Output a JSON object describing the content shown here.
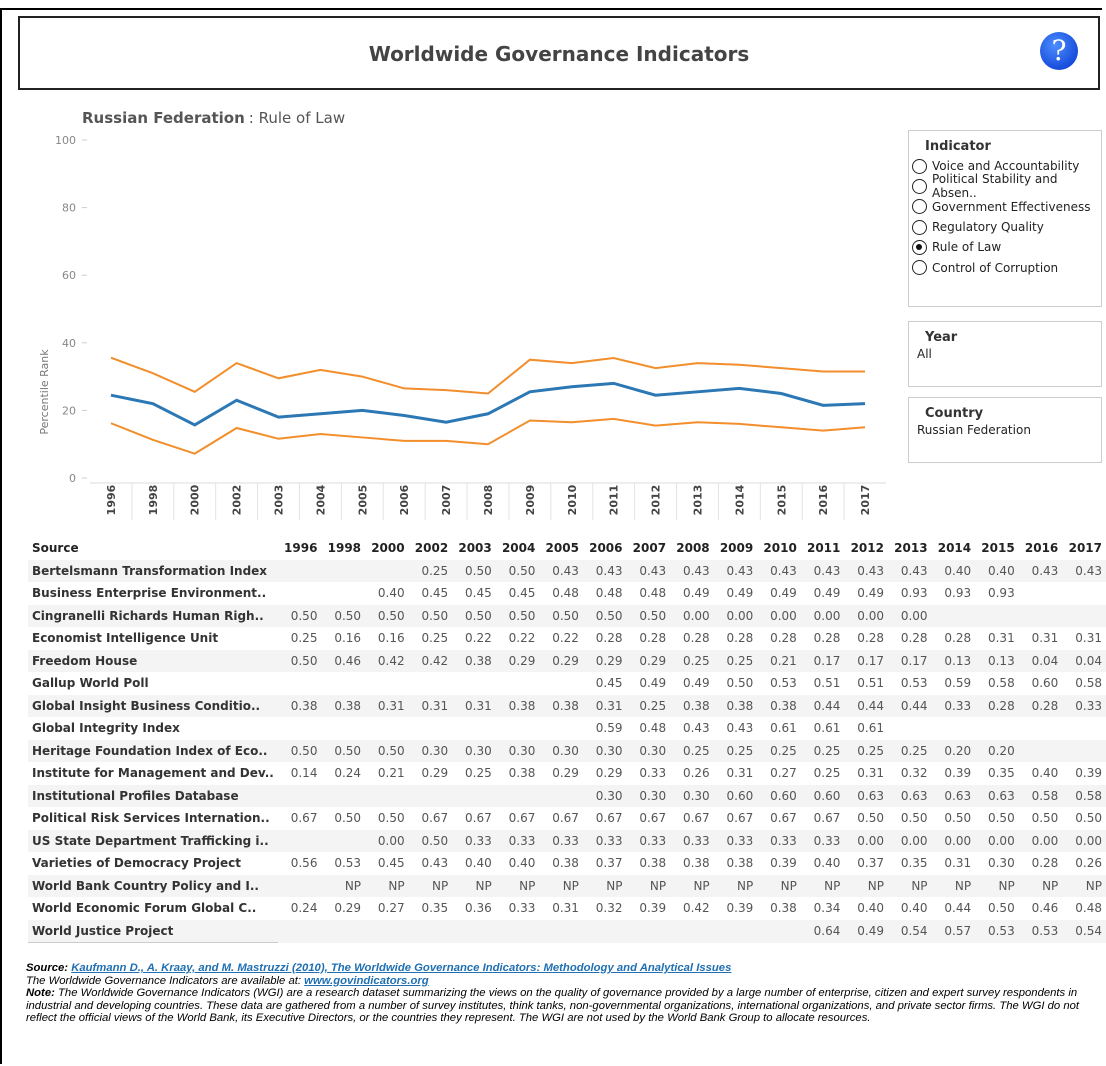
{
  "header": {
    "title": "Worldwide Governance Indicators",
    "help": "?"
  },
  "chart_data": {
    "type": "line",
    "title": "Russian Federation",
    "subtitle": ": Rule of Law",
    "ylabel": "Percentile Rank",
    "categories": [
      "1996",
      "1998",
      "2000",
      "2002",
      "2003",
      "2004",
      "2005",
      "2006",
      "2007",
      "2008",
      "2009",
      "2010",
      "2011",
      "2012",
      "2013",
      "2014",
      "2015",
      "2016",
      "2017"
    ],
    "series": [
      {
        "color": "#f28e2b",
        "values": [
          35.6,
          31,
          25.5,
          34,
          29.5,
          32,
          30,
          26.5,
          26,
          25,
          35,
          34,
          35.5,
          32.5,
          34,
          33.5,
          32.5,
          31.5,
          31.5
        ]
      },
      {
        "color": "#2c78b5",
        "values": [
          24.5,
          22,
          15.7,
          23,
          18,
          19,
          20,
          18.5,
          16.5,
          19,
          25.5,
          27,
          28,
          24.5,
          25.5,
          26.5,
          25,
          21.5,
          22
        ]
      },
      {
        "color": "#f28e2b",
        "values": [
          16.2,
          11.3,
          7.2,
          14.8,
          11.6,
          13,
          12,
          11,
          11,
          10,
          17,
          16.5,
          17.5,
          15.5,
          16.5,
          16,
          15,
          14,
          15
        ]
      }
    ],
    "ylim": [
      0,
      100
    ],
    "yticks": [
      0,
      20,
      40,
      60,
      80,
      100
    ]
  },
  "filters": {
    "indicator": {
      "title": "Indicator",
      "options": [
        "Voice and Accountability",
        "Political Stability and Absen..",
        "Government Effectiveness",
        "Regulatory Quality",
        "Rule of Law",
        "Control of Corruption"
      ],
      "selected": 4
    },
    "year": {
      "title": "Year",
      "value": "All"
    },
    "country": {
      "title": "Country",
      "value": "Russian Federation"
    }
  },
  "table": {
    "header": [
      "Source",
      "1996",
      "1998",
      "2000",
      "2002",
      "2003",
      "2004",
      "2005",
      "2006",
      "2007",
      "2008",
      "2009",
      "2010",
      "2011",
      "2012",
      "2013",
      "2014",
      "2015",
      "2016",
      "2017"
    ],
    "rows": [
      [
        "Bertelsmann Transformation Index",
        null,
        null,
        null,
        "0.25",
        "0.50",
        "0.50",
        "0.43",
        "0.43",
        "0.43",
        "0.43",
        "0.43",
        "0.43",
        "0.43",
        "0.43",
        "0.43",
        "0.40",
        "0.40",
        "0.43",
        "0.43"
      ],
      [
        "Business Enterprise Environment..",
        null,
        null,
        "0.40",
        "0.45",
        "0.45",
        "0.45",
        "0.48",
        "0.48",
        "0.48",
        "0.49",
        "0.49",
        "0.49",
        "0.49",
        "0.49",
        "0.93",
        "0.93",
        "0.93",
        null,
        null
      ],
      [
        "Cingranelli Richards Human Righ..",
        "0.50",
        "0.50",
        "0.50",
        "0.50",
        "0.50",
        "0.50",
        "0.50",
        "0.50",
        "0.50",
        "0.00",
        "0.00",
        "0.00",
        "0.00",
        "0.00",
        "0.00",
        null,
        null,
        null,
        null
      ],
      [
        "Economist Intelligence Unit",
        "0.25",
        "0.16",
        "0.16",
        "0.25",
        "0.22",
        "0.22",
        "0.22",
        "0.28",
        "0.28",
        "0.28",
        "0.28",
        "0.28",
        "0.28",
        "0.28",
        "0.28",
        "0.28",
        "0.31",
        "0.31",
        "0.31"
      ],
      [
        "Freedom House",
        "0.50",
        "0.46",
        "0.42",
        "0.42",
        "0.38",
        "0.29",
        "0.29",
        "0.29",
        "0.29",
        "0.25",
        "0.25",
        "0.21",
        "0.17",
        "0.17",
        "0.17",
        "0.13",
        "0.13",
        "0.04",
        "0.04"
      ],
      [
        "Gallup World Poll",
        null,
        null,
        null,
        null,
        null,
        null,
        null,
        "0.45",
        "0.49",
        "0.49",
        "0.50",
        "0.53",
        "0.51",
        "0.51",
        "0.53",
        "0.59",
        "0.58",
        "0.60",
        "0.58"
      ],
      [
        "Global Insight Business Conditio..",
        "0.38",
        "0.38",
        "0.31",
        "0.31",
        "0.31",
        "0.38",
        "0.38",
        "0.31",
        "0.25",
        "0.38",
        "0.38",
        "0.38",
        "0.44",
        "0.44",
        "0.44",
        "0.33",
        "0.28",
        "0.28",
        "0.33"
      ],
      [
        "Global Integrity Index",
        null,
        null,
        null,
        null,
        null,
        null,
        null,
        "0.59",
        "0.48",
        "0.43",
        "0.43",
        "0.61",
        "0.61",
        "0.61",
        null,
        null,
        null,
        null,
        null
      ],
      [
        "Heritage Foundation Index of Eco..",
        "0.50",
        "0.50",
        "0.50",
        "0.30",
        "0.30",
        "0.30",
        "0.30",
        "0.30",
        "0.30",
        "0.25",
        "0.25",
        "0.25",
        "0.25",
        "0.25",
        "0.25",
        "0.20",
        "0.20",
        null,
        null
      ],
      [
        "Institute for Management and Dev..",
        "0.14",
        "0.24",
        "0.21",
        "0.29",
        "0.25",
        "0.38",
        "0.29",
        "0.29",
        "0.33",
        "0.26",
        "0.31",
        "0.27",
        "0.25",
        "0.31",
        "0.32",
        "0.39",
        "0.35",
        "0.40",
        "0.39"
      ],
      [
        "Institutional Profiles Database",
        null,
        null,
        null,
        null,
        null,
        null,
        null,
        "0.30",
        "0.30",
        "0.30",
        "0.60",
        "0.60",
        "0.60",
        "0.63",
        "0.63",
        "0.63",
        "0.63",
        "0.58",
        "0.58"
      ],
      [
        "Political Risk Services Internation..",
        "0.67",
        "0.50",
        "0.50",
        "0.67",
        "0.67",
        "0.67",
        "0.67",
        "0.67",
        "0.67",
        "0.67",
        "0.67",
        "0.67",
        "0.67",
        "0.50",
        "0.50",
        "0.50",
        "0.50",
        "0.50",
        "0.50"
      ],
      [
        "US State Department Trafficking i..",
        null,
        null,
        "0.00",
        "0.50",
        "0.33",
        "0.33",
        "0.33",
        "0.33",
        "0.33",
        "0.33",
        "0.33",
        "0.33",
        "0.33",
        "0.00",
        "0.00",
        "0.00",
        "0.00",
        "0.00",
        "0.00"
      ],
      [
        "Varieties of Democracy Project",
        "0.56",
        "0.53",
        "0.45",
        "0.43",
        "0.40",
        "0.40",
        "0.38",
        "0.37",
        "0.38",
        "0.38",
        "0.38",
        "0.39",
        "0.40",
        "0.37",
        "0.35",
        "0.31",
        "0.30",
        "0.28",
        "0.26"
      ],
      [
        "World Bank Country Policy and I..",
        null,
        "NP",
        "NP",
        "NP",
        "NP",
        "NP",
        "NP",
        "NP",
        "NP",
        "NP",
        "NP",
        "NP",
        "NP",
        "NP",
        "NP",
        "NP",
        "NP",
        "NP",
        "NP"
      ],
      [
        "World Economic Forum Global C..",
        "0.24",
        "0.29",
        "0.27",
        "0.35",
        "0.36",
        "0.33",
        "0.31",
        "0.32",
        "0.39",
        "0.42",
        "0.39",
        "0.38",
        "0.34",
        "0.40",
        "0.40",
        "0.44",
        "0.50",
        "0.46",
        "0.48"
      ],
      [
        "World Justice Project",
        null,
        null,
        null,
        null,
        null,
        null,
        null,
        null,
        null,
        null,
        null,
        null,
        "0.64",
        "0.49",
        "0.54",
        "0.57",
        "0.53",
        "0.53",
        "0.54"
      ]
    ]
  },
  "footer": {
    "source_label": "Source:",
    "source_link": "Kaufmann D., A. Kraay, and M. Mastruzzi (2010), The Worldwide Governance Indicators: Methodology and Analytical Issues",
    "available_text": "The Worldwide Governance Indicators are available at:",
    "available_link": "www.govindicators.org",
    "note_label": "Note:",
    "note_text": "The Worldwide Governance Indicators (WGI) are a research dataset summarizing the views on the quality of governance provided by a large number of enterprise, citizen and expert survey respondents in industrial and developing countries. These data are gathered from a number of survey institutes, think tanks, non-governmental organizations, international organizations, and private sector firms. The WGI do not reflect the official views of the World Bank, its Executive Directors, or the countries they represent. The WGI are not used by the World Bank Group to allocate resources."
  }
}
